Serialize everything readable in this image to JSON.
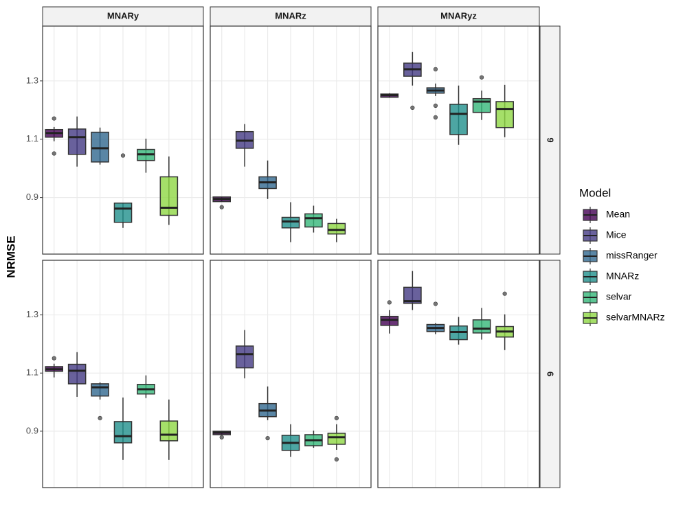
{
  "chart_data": {
    "type": "boxplot",
    "ylabel": "NRMSE",
    "legend_title": "Model",
    "facet_cols": [
      "MNARy",
      "MNARz",
      "MNARyz"
    ],
    "facet_rows": [
      "9",
      "6"
    ],
    "ylim": [
      0.706,
      1.488
    ],
    "yticks": [
      0.9,
      1.1,
      1.3
    ],
    "grid": true,
    "series": [
      {
        "name": "Mean",
        "color": "#440154"
      },
      {
        "name": "Mice",
        "color": "#443A83"
      },
      {
        "name": "missRanger",
        "color": "#31688E"
      },
      {
        "name": "MNARz",
        "color": "#21908C"
      },
      {
        "name": "selvar",
        "color": "#35B779"
      },
      {
        "name": "selvarMNARz",
        "color": "#8FD744"
      }
    ],
    "panels": [
      {
        "boxes": [
          {
            "min": 1.093,
            "q1": 1.107,
            "median": 1.121,
            "q3": 1.133,
            "max": 1.142,
            "outliers": [
              1.171,
              1.051
            ]
          },
          {
            "min": 1.006,
            "q1": 1.048,
            "median": 1.107,
            "q3": 1.135,
            "max": 1.178,
            "outliers": []
          },
          {
            "min": 1.013,
            "q1": 1.022,
            "median": 1.069,
            "q3": 1.124,
            "max": 1.14,
            "outliers": []
          },
          {
            "min": 0.796,
            "q1": 0.815,
            "median": 0.862,
            "q3": 0.881,
            "max": 0.881,
            "outliers": [
              1.044
            ]
          },
          {
            "min": 0.985,
            "q1": 1.027,
            "median": 1.048,
            "q3": 1.065,
            "max": 1.102,
            "outliers": []
          },
          {
            "min": 0.806,
            "q1": 0.839,
            "median": 0.865,
            "q3": 0.971,
            "max": 1.041,
            "outliers": []
          }
        ]
      },
      {
        "boxes": [
          {
            "min": 0.886,
            "q1": 0.886,
            "median": 0.895,
            "q3": 0.902,
            "max": 0.902,
            "outliers": [
              0.867
            ]
          },
          {
            "min": 1.006,
            "q1": 1.069,
            "median": 1.095,
            "q3": 1.126,
            "max": 1.152,
            "outliers": []
          },
          {
            "min": 0.895,
            "q1": 0.931,
            "median": 0.952,
            "q3": 0.971,
            "max": 1.027,
            "outliers": []
          },
          {
            "min": 0.747,
            "q1": 0.796,
            "median": 0.818,
            "q3": 0.832,
            "max": 0.884,
            "outliers": []
          },
          {
            "min": 0.78,
            "q1": 0.799,
            "median": 0.829,
            "q3": 0.844,
            "max": 0.872,
            "outliers": []
          },
          {
            "min": 0.747,
            "q1": 0.775,
            "median": 0.789,
            "q3": 0.811,
            "max": 0.827,
            "outliers": []
          }
        ]
      },
      {
        "boxes": [
          {
            "min": 1.242,
            "q1": 1.244,
            "median": 1.251,
            "q3": 1.255,
            "max": 1.258,
            "outliers": []
          },
          {
            "min": 1.284,
            "q1": 1.316,
            "median": 1.34,
            "q3": 1.361,
            "max": 1.399,
            "outliers": [
              1.208
            ]
          },
          {
            "min": 1.248,
            "q1": 1.258,
            "median": 1.267,
            "q3": 1.276,
            "max": 1.291,
            "outliers": [
              1.34,
              1.215,
              1.175
            ]
          },
          {
            "min": 1.081,
            "q1": 1.116,
            "median": 1.187,
            "q3": 1.22,
            "max": 1.284,
            "outliers": []
          },
          {
            "min": 1.166,
            "q1": 1.192,
            "median": 1.229,
            "q3": 1.239,
            "max": 1.267,
            "outliers": [
              1.312
            ]
          },
          {
            "min": 1.107,
            "q1": 1.14,
            "median": 1.204,
            "q3": 1.229,
            "max": 1.286,
            "outliers": []
          }
        ]
      },
      {
        "boxes": [
          {
            "min": 1.085,
            "q1": 1.106,
            "median": 1.113,
            "q3": 1.122,
            "max": 1.132,
            "outliers": [
              1.151
            ]
          },
          {
            "min": 1.018,
            "q1": 1.063,
            "median": 1.108,
            "q3": 1.13,
            "max": 1.172,
            "outliers": []
          },
          {
            "min": 1.009,
            "q1": 1.021,
            "median": 1.051,
            "q3": 1.063,
            "max": 1.068,
            "outliers": [
              0.945
            ]
          },
          {
            "min": 0.801,
            "q1": 0.86,
            "median": 0.883,
            "q3": 0.933,
            "max": 1.016,
            "outliers": []
          },
          {
            "min": 1.014,
            "q1": 1.028,
            "median": 1.044,
            "q3": 1.061,
            "max": 1.092,
            "outliers": []
          },
          {
            "min": 0.801,
            "q1": 0.867,
            "median": 0.888,
            "q3": 0.935,
            "max": 1.009,
            "outliers": []
          }
        ]
      },
      {
        "boxes": [
          {
            "min": 0.888,
            "q1": 0.888,
            "median": 0.895,
            "q3": 0.9,
            "max": 0.9,
            "outliers": [
              0.879
            ]
          },
          {
            "min": 1.082,
            "q1": 1.118,
            "median": 1.165,
            "q3": 1.193,
            "max": 1.248,
            "outliers": []
          },
          {
            "min": 0.938,
            "q1": 0.95,
            "median": 0.971,
            "q3": 0.995,
            "max": 1.054,
            "outliers": [
              0.876
            ]
          },
          {
            "min": 0.812,
            "q1": 0.834,
            "median": 0.86,
            "q3": 0.886,
            "max": 0.924,
            "outliers": []
          },
          {
            "min": 0.843,
            "q1": 0.85,
            "median": 0.869,
            "q3": 0.888,
            "max": 0.902,
            "outliers": []
          },
          {
            "min": 0.836,
            "q1": 0.855,
            "median": 0.879,
            "q3": 0.893,
            "max": 0.924,
            "outliers": [
              0.945,
              0.803
            ]
          }
        ]
      },
      {
        "boxes": [
          {
            "min": 1.236,
            "q1": 1.264,
            "median": 1.283,
            "q3": 1.295,
            "max": 1.317,
            "outliers": [
              1.343
            ]
          },
          {
            "min": 1.317,
            "q1": 1.34,
            "median": 1.347,
            "q3": 1.395,
            "max": 1.451,
            "outliers": []
          },
          {
            "min": 1.234,
            "q1": 1.243,
            "median": 1.255,
            "q3": 1.267,
            "max": 1.272,
            "outliers": [
              1.338
            ]
          },
          {
            "min": 1.198,
            "q1": 1.215,
            "median": 1.241,
            "q3": 1.262,
            "max": 1.293,
            "outliers": []
          },
          {
            "min": 1.215,
            "q1": 1.238,
            "median": 1.253,
            "q3": 1.283,
            "max": 1.324,
            "outliers": []
          },
          {
            "min": 1.179,
            "q1": 1.224,
            "median": 1.243,
            "q3": 1.26,
            "max": 1.302,
            "outliers": [
              1.373
            ]
          }
        ]
      }
    ]
  }
}
